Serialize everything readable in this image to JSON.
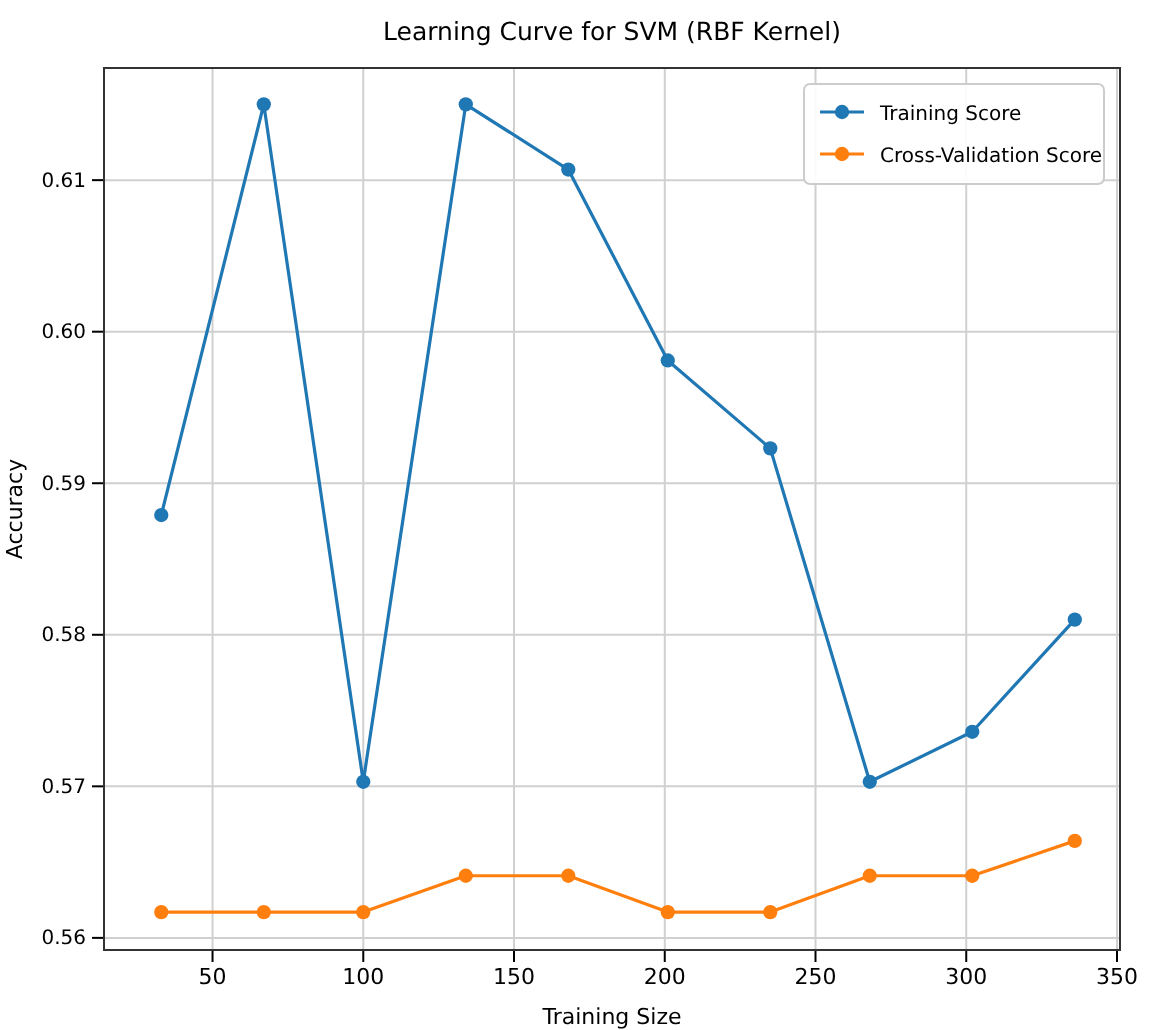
{
  "chart_data": {
    "type": "line",
    "title": "Learning Curve for SVM (RBF Kernel)",
    "xlabel": "Training Size",
    "ylabel": "Accuracy",
    "x": [
      33,
      67,
      100,
      134,
      168,
      201,
      235,
      268,
      302,
      336
    ],
    "series": [
      {
        "name": "Training Score",
        "color": "#1f77b4",
        "values": [
          0.5879,
          0.615,
          0.5703,
          0.615,
          0.6107,
          0.5981,
          0.5923,
          0.5703,
          0.5736,
          0.581
        ]
      },
      {
        "name": "Cross-Validation Score",
        "color": "#ff7f0e",
        "values": [
          0.5617,
          0.5617,
          0.5617,
          0.5641,
          0.5641,
          0.5617,
          0.5617,
          0.5641,
          0.5641,
          0.5664
        ]
      }
    ],
    "xlim": [
      14,
      351
    ],
    "xticks": [
      50,
      100,
      150,
      200,
      250,
      300,
      350
    ],
    "ylim": [
      0.5592,
      0.6174
    ],
    "yticks": [
      {
        "value": 0.56,
        "label": "0.56"
      },
      {
        "value": 0.57,
        "label": "0.57"
      },
      {
        "value": 0.58,
        "label": "0.58"
      },
      {
        "value": 0.59,
        "label": "0.59"
      },
      {
        "value": 0.6,
        "label": "0.60"
      },
      {
        "value": 0.61,
        "label": "0.61"
      }
    ],
    "grid": true,
    "legend": "top right",
    "marker": "circle",
    "line_style": "solid"
  }
}
